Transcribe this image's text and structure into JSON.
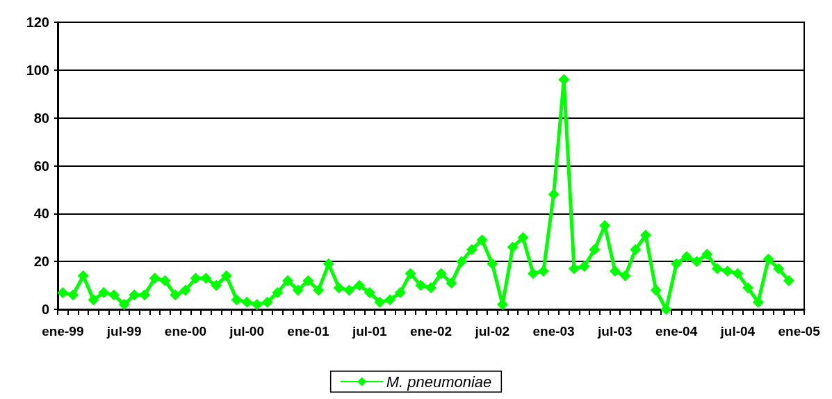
{
  "chart_data": {
    "type": "line",
    "categories": [
      "ene-99",
      null,
      null,
      null,
      null,
      null,
      "jul-99",
      null,
      null,
      null,
      null,
      null,
      "ene-00",
      null,
      null,
      null,
      null,
      null,
      "jul-00",
      null,
      null,
      null,
      null,
      null,
      "ene-01",
      null,
      null,
      null,
      null,
      null,
      "jul-01",
      null,
      null,
      null,
      null,
      null,
      "ene-02",
      null,
      null,
      null,
      null,
      null,
      "jul-02",
      null,
      null,
      null,
      null,
      null,
      "ene-03",
      null,
      null,
      null,
      null,
      null,
      "jul-03",
      null,
      null,
      null,
      null,
      null,
      "ene-04",
      null,
      null,
      null,
      null,
      null,
      "jul-04",
      null,
      null,
      null,
      null,
      null,
      "ene-05"
    ],
    "series": [
      {
        "name": "M. pneumoniae",
        "color": "#00ff00",
        "values": [
          7,
          6,
          14,
          4,
          7,
          6,
          2,
          6,
          6,
          13,
          12,
          6,
          8,
          13,
          13,
          10,
          14,
          4,
          3,
          2,
          3,
          7,
          12,
          8,
          12,
          8,
          19,
          9,
          8,
          10,
          7,
          3,
          4,
          7,
          15,
          10,
          9,
          15,
          11,
          20,
          25,
          29,
          19,
          2,
          26,
          30,
          15,
          16,
          48,
          96,
          17,
          18,
          25,
          35,
          16,
          14,
          25,
          31,
          8,
          0,
          19,
          22,
          20,
          23,
          17,
          16,
          15,
          9,
          3,
          21,
          17,
          12,
          null
        ]
      }
    ],
    "ylim": [
      0,
      120
    ],
    "yticks": [
      0,
      20,
      40,
      60,
      80,
      100,
      120
    ],
    "grid": "y",
    "legend": "bottom",
    "marker": "diamond",
    "line_style": "solid"
  }
}
